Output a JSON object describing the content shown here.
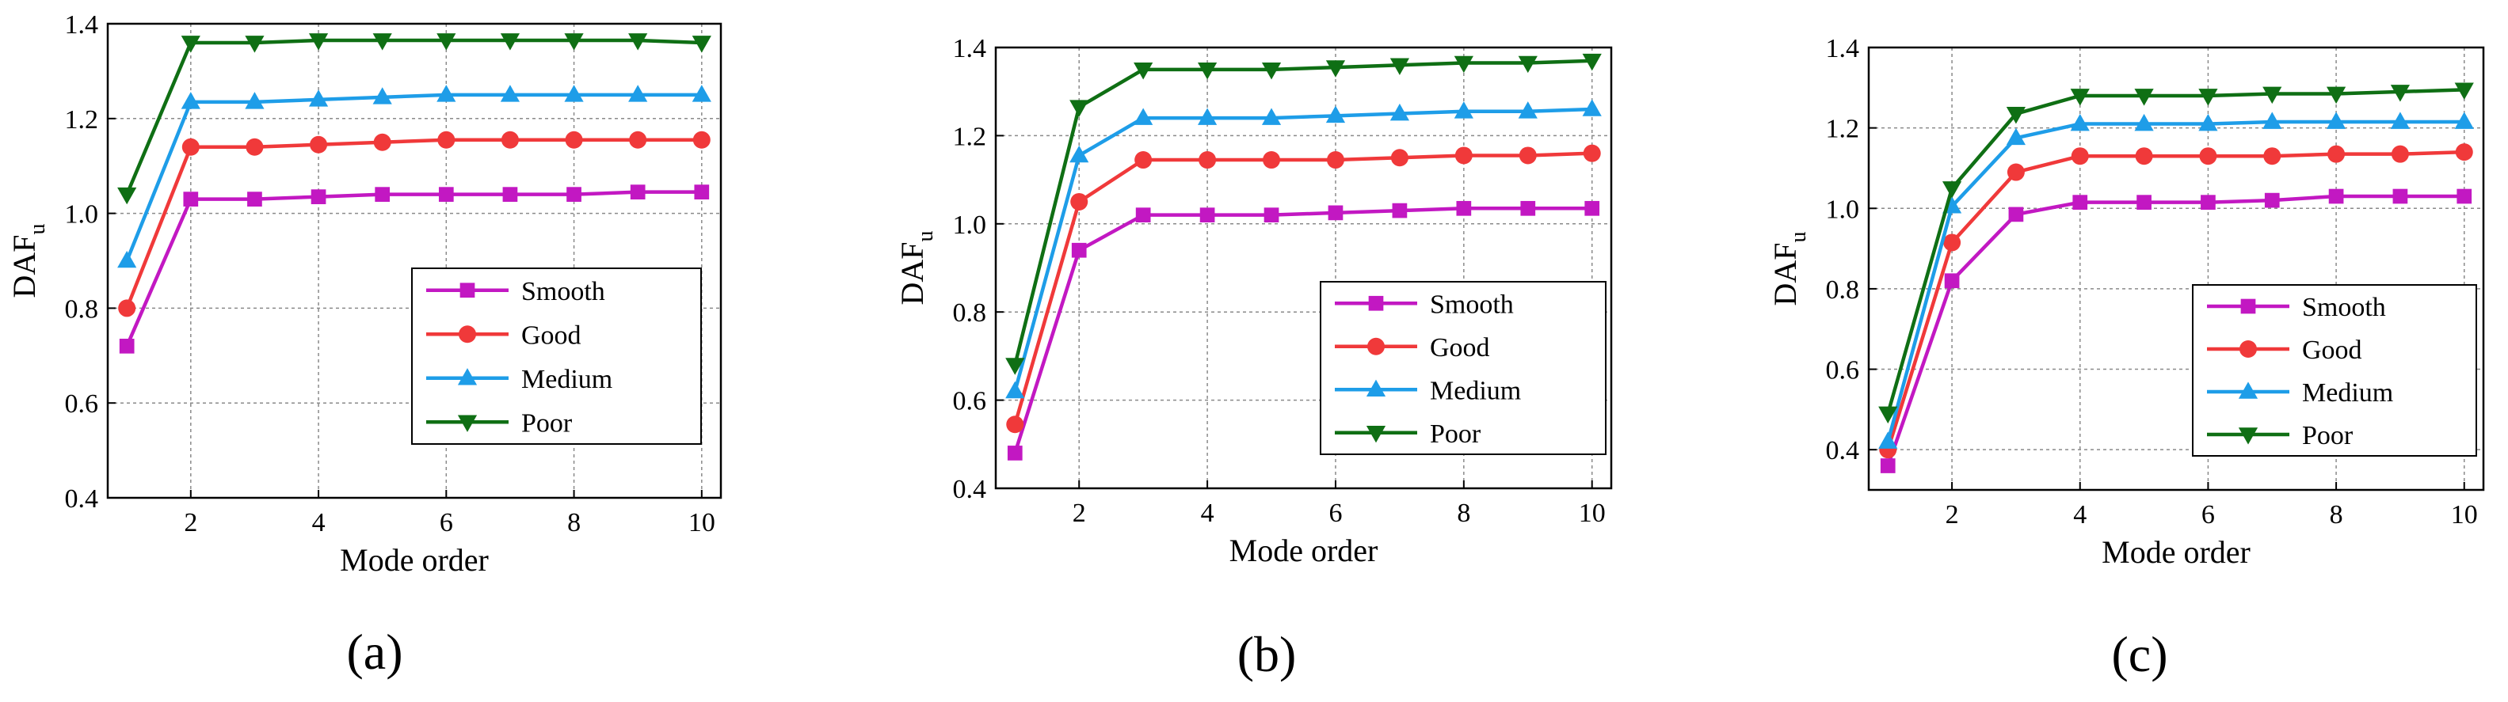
{
  "colors": {
    "Smooth": "#c218c2",
    "Good": "#f0393a",
    "Medium": "#1e9de8",
    "Poor": "#0f6f14"
  },
  "chart_data": [
    {
      "type": "line",
      "panel_label": "(a)",
      "panel_letter": "a",
      "xlabel": "Mode order",
      "ylabel": "DAF",
      "ylabel_sub": "u",
      "xlim": [
        0.7,
        10.3
      ],
      "ylim": [
        0.4,
        1.4
      ],
      "xticks": [
        2,
        4,
        6,
        8,
        10
      ],
      "yticks": [
        0.4,
        0.6,
        0.8,
        1.0,
        1.2,
        1.4
      ],
      "ytick_labels": [
        "0.4",
        "0.6",
        "0.8",
        "1.0",
        "1.2",
        "1.4"
      ],
      "xtick_labels": [
        "2",
        "4",
        "6",
        "8",
        "10"
      ],
      "legend": [
        "Smooth",
        "Good",
        "Medium",
        "Poor"
      ],
      "grid": true,
      "x": [
        1,
        2,
        3,
        4,
        5,
        6,
        7,
        8,
        9,
        10
      ],
      "series": [
        {
          "name": "Smooth",
          "marker": "square",
          "values": [
            0.72,
            1.03,
            1.03,
            1.035,
            1.04,
            1.04,
            1.04,
            1.04,
            1.045,
            1.045
          ]
        },
        {
          "name": "Good",
          "marker": "circle",
          "values": [
            0.8,
            1.14,
            1.14,
            1.145,
            1.15,
            1.155,
            1.155,
            1.155,
            1.155,
            1.155
          ]
        },
        {
          "name": "Medium",
          "marker": "triangle-up",
          "values": [
            0.9,
            1.235,
            1.235,
            1.24,
            1.245,
            1.25,
            1.25,
            1.25,
            1.25,
            1.25
          ]
        },
        {
          "name": "Poor",
          "marker": "triangle-down",
          "values": [
            1.04,
            1.36,
            1.36,
            1.365,
            1.365,
            1.365,
            1.365,
            1.365,
            1.365,
            1.36
          ]
        }
      ]
    },
    {
      "type": "line",
      "panel_label": "(b)",
      "panel_letter": "b",
      "xlabel": "Mode order",
      "ylabel": "DAF",
      "ylabel_sub": "u",
      "xlim": [
        0.7,
        10.3
      ],
      "ylim": [
        0.4,
        1.4
      ],
      "xticks": [
        2,
        4,
        6,
        8,
        10
      ],
      "yticks": [
        0.4,
        0.6,
        0.8,
        1.0,
        1.2,
        1.4
      ],
      "ytick_labels": [
        "0.4",
        "0.6",
        "0.8",
        "1.0",
        "1.2",
        "1.4"
      ],
      "xtick_labels": [
        "2",
        "4",
        "6",
        "8",
        "10"
      ],
      "legend": [
        "Smooth",
        "Good",
        "Medium",
        "Poor"
      ],
      "grid": true,
      "x": [
        1,
        2,
        3,
        4,
        5,
        6,
        7,
        8,
        9,
        10
      ],
      "series": [
        {
          "name": "Smooth",
          "marker": "square",
          "values": [
            0.48,
            0.94,
            1.02,
            1.02,
            1.02,
            1.025,
            1.03,
            1.035,
            1.035,
            1.035
          ]
        },
        {
          "name": "Good",
          "marker": "circle",
          "values": [
            0.545,
            1.05,
            1.145,
            1.145,
            1.145,
            1.145,
            1.15,
            1.155,
            1.155,
            1.16
          ]
        },
        {
          "name": "Medium",
          "marker": "triangle-up",
          "values": [
            0.62,
            1.155,
            1.24,
            1.24,
            1.24,
            1.245,
            1.25,
            1.255,
            1.255,
            1.26
          ]
        },
        {
          "name": "Poor",
          "marker": "triangle-down",
          "values": [
            0.68,
            1.265,
            1.35,
            1.35,
            1.35,
            1.355,
            1.36,
            1.365,
            1.365,
            1.37
          ]
        }
      ]
    },
    {
      "type": "line",
      "panel_label": "(c)",
      "panel_letter": "c",
      "xlabel": "Mode order",
      "ylabel": "DAF",
      "ylabel_sub": "u",
      "xlim": [
        0.7,
        10.3
      ],
      "ylim": [
        0.3,
        1.4
      ],
      "xticks": [
        2,
        4,
        6,
        8,
        10
      ],
      "yticks": [
        0.4,
        0.6,
        0.8,
        1.0,
        1.2,
        1.4
      ],
      "ytick_labels": [
        "0.4",
        "0.6",
        "0.8",
        "1.0",
        "1.2",
        "1.4"
      ],
      "xtick_labels": [
        "2",
        "4",
        "6",
        "8",
        "10"
      ],
      "legend": [
        "Smooth",
        "Good",
        "Medium",
        "Poor"
      ],
      "grid": true,
      "x": [
        1,
        2,
        3,
        4,
        5,
        6,
        7,
        8,
        9,
        10
      ],
      "series": [
        {
          "name": "Smooth",
          "marker": "square",
          "values": [
            0.36,
            0.82,
            0.985,
            1.015,
            1.015,
            1.015,
            1.02,
            1.03,
            1.03,
            1.03
          ]
        },
        {
          "name": "Good",
          "marker": "circle",
          "values": [
            0.4,
            0.915,
            1.09,
            1.13,
            1.13,
            1.13,
            1.13,
            1.135,
            1.135,
            1.14
          ]
        },
        {
          "name": "Medium",
          "marker": "triangle-up",
          "values": [
            0.42,
            1.005,
            1.175,
            1.21,
            1.21,
            1.21,
            1.215,
            1.215,
            1.215,
            1.215
          ]
        },
        {
          "name": "Poor",
          "marker": "triangle-down",
          "values": [
            0.49,
            1.05,
            1.235,
            1.28,
            1.28,
            1.28,
            1.285,
            1.285,
            1.29,
            1.295
          ]
        }
      ]
    }
  ]
}
